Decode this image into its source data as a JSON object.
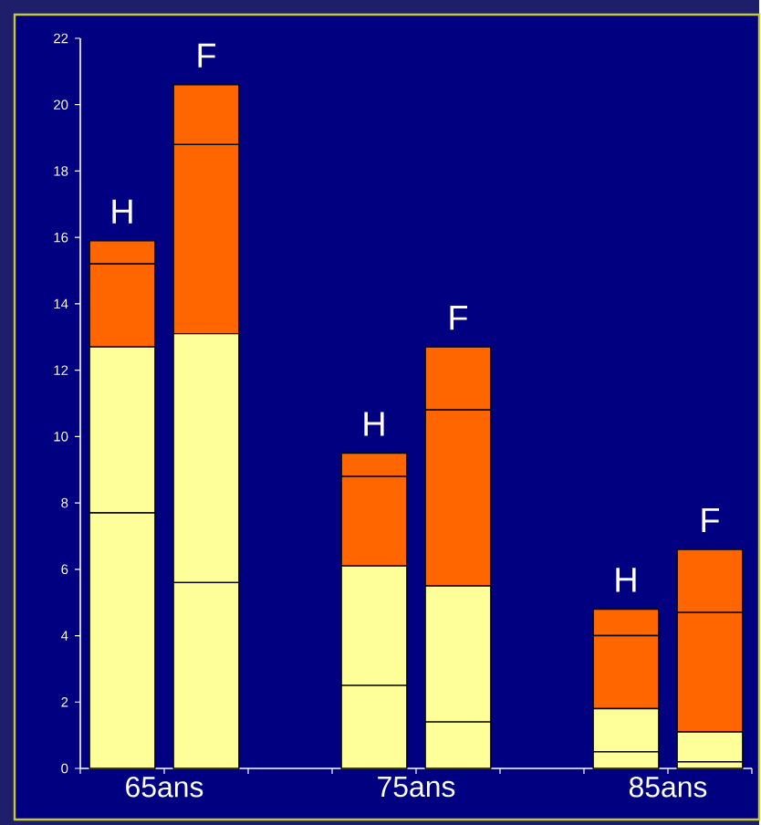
{
  "chart_data": {
    "type": "bar",
    "stacked": true,
    "categories": [
      "H",
      "F",
      null,
      "H",
      "F",
      null,
      "H",
      "F"
    ],
    "series": [
      {
        "color": "#ffff99",
        "values": [
          7.7,
          5.6,
          null,
          2.5,
          1.4,
          null,
          0.5,
          0.2
        ]
      },
      {
        "color": "#ffff99",
        "values": [
          5.0,
          7.5,
          null,
          3.6,
          4.1,
          null,
          1.3,
          0.9
        ]
      },
      {
        "color": "#ff6600",
        "values": [
          2.5,
          5.7,
          null,
          2.7,
          5.3,
          null,
          2.2,
          3.6
        ]
      },
      {
        "color": "#ff6600",
        "values": [
          0.7,
          1.8,
          null,
          0.7,
          1.9,
          null,
          0.8,
          1.9
        ]
      }
    ],
    "annotations": [
      "65ans",
      "75ans",
      "85ans"
    ],
    "ylim": [
      0,
      22
    ],
    "yticks": [
      0,
      2,
      4,
      6,
      8,
      10,
      12,
      14,
      16,
      18,
      20,
      22
    ],
    "grid": false
  }
}
